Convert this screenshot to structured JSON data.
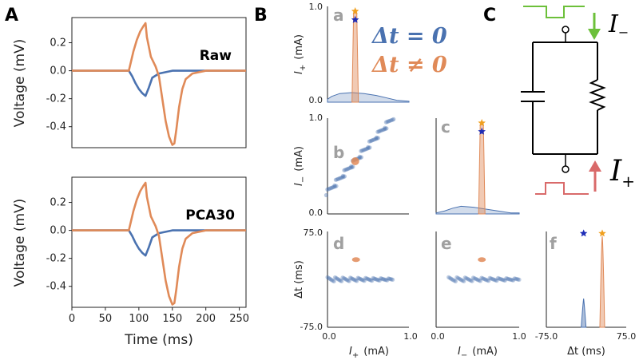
{
  "panels": {
    "A": "A",
    "B": "B",
    "C": "C"
  },
  "colors": {
    "blue": "#4a72b0",
    "orange": "#e08a58",
    "green": "#6cc03a",
    "red": "#d96a6a",
    "star_blue": "#1f2eb8",
    "star_orange": "#f0a020"
  },
  "chart_data": [
    {
      "id": "A-raw",
      "type": "line",
      "title": "Raw",
      "xlabel": "",
      "ylabel": "Voltage (mV)",
      "xlim": [
        0,
        260
      ],
      "ylim": [
        -0.55,
        0.38
      ],
      "yticks": [
        "0.2",
        "0.0",
        "-0.2",
        "-0.4"
      ],
      "ytick_values": [
        0.2,
        0.0,
        -0.2,
        -0.4
      ],
      "series": [
        {
          "name": "Δt = 0",
          "color": "#4a72b0",
          "x": [
            0,
            85,
            90,
            95,
            100,
            105,
            110,
            115,
            120,
            130,
            140,
            150,
            160,
            180,
            260
          ],
          "y": [
            0,
            0,
            -0.04,
            -0.09,
            -0.13,
            -0.16,
            -0.18,
            -0.12,
            -0.05,
            -0.02,
            -0.01,
            0,
            0,
            0,
            0
          ]
        },
        {
          "name": "Δt ≠ 0",
          "color": "#e08a58",
          "x": [
            0,
            85,
            88,
            92,
            97,
            102,
            107,
            110,
            112,
            118,
            125,
            130,
            135,
            140,
            145,
            150,
            153,
            156,
            160,
            165,
            170,
            180,
            190,
            200,
            260
          ],
          "y": [
            0,
            0,
            0.06,
            0.14,
            0.22,
            0.28,
            0.32,
            0.34,
            0.24,
            0.1,
            0.03,
            -0.04,
            -0.2,
            -0.36,
            -0.47,
            -0.53,
            -0.52,
            -0.42,
            -0.26,
            -0.13,
            -0.06,
            -0.02,
            -0.01,
            0,
            0
          ]
        }
      ]
    },
    {
      "id": "A-pca",
      "type": "line",
      "title": "PCA30",
      "xlabel": "Time (ms)",
      "ylabel": "Voltage (mV)",
      "xlim": [
        0,
        260
      ],
      "ylim": [
        -0.55,
        0.38
      ],
      "xticks": [
        "0",
        "50",
        "100",
        "150",
        "200",
        "250"
      ],
      "xtick_values": [
        0,
        50,
        100,
        150,
        200,
        250
      ],
      "yticks": [
        "0.2",
        "0.0",
        "-0.2",
        "-0.4"
      ],
      "ytick_values": [
        0.2,
        0.0,
        -0.2,
        -0.4
      ],
      "series": [
        {
          "name": "Δt = 0",
          "color": "#4a72b0",
          "x": [
            0,
            85,
            90,
            95,
            100,
            105,
            110,
            115,
            120,
            130,
            140,
            150,
            160,
            180,
            260
          ],
          "y": [
            0,
            0,
            -0.04,
            -0.09,
            -0.13,
            -0.16,
            -0.18,
            -0.12,
            -0.05,
            -0.02,
            -0.01,
            0,
            0,
            0,
            0
          ]
        },
        {
          "name": "Δt ≠ 0",
          "color": "#e08a58",
          "x": [
            0,
            85,
            88,
            92,
            97,
            102,
            107,
            110,
            112,
            118,
            125,
            130,
            135,
            140,
            145,
            150,
            153,
            156,
            160,
            165,
            170,
            180,
            190,
            200,
            260
          ],
          "y": [
            0,
            0,
            0.06,
            0.14,
            0.22,
            0.28,
            0.32,
            0.34,
            0.24,
            0.1,
            0.03,
            -0.04,
            -0.2,
            -0.36,
            -0.47,
            -0.53,
            -0.52,
            -0.42,
            -0.26,
            -0.13,
            -0.06,
            -0.02,
            -0.01,
            0,
            0
          ]
        }
      ]
    },
    {
      "id": "B-a",
      "type": "area",
      "label": "a",
      "ylabel": "I+ (mA)",
      "ylabel_main": "I",
      "ylabel_sub": "+",
      "ylabel_unit": "(mA)",
      "ylim": [
        0,
        1.0
      ],
      "yticks": [
        "1.0",
        "0.0"
      ],
      "xlim": [
        0,
        1.0
      ],
      "legend": {
        "eq": "Δt = 0",
        "neq": "Δt ≠ 0"
      },
      "blue_density_x": [
        0,
        0.05,
        0.15,
        0.3,
        0.45,
        0.6,
        0.75,
        0.85,
        1.0
      ],
      "blue_density_y": [
        0.03,
        0.06,
        0.09,
        0.1,
        0.09,
        0.07,
        0.04,
        0.02,
        0.01
      ],
      "orange_peak_x": 0.34,
      "orange_peak_y": 0.93,
      "star_blue_x": 0.34,
      "star_blue_y": 0.86,
      "star_orange_x": 0.34,
      "star_orange_y": 0.95
    },
    {
      "id": "B-b",
      "type": "scatter",
      "label": "b",
      "ylabel": "I− (mA)",
      "ylabel_main": "I",
      "ylabel_sub": "−",
      "ylabel_unit": "(mA)",
      "xlim": [
        0,
        1.0
      ],
      "ylim": [
        0,
        1.0
      ],
      "yticks": [
        "1.0",
        "0.0"
      ],
      "blue_line_x": [
        0.0,
        0.8
      ],
      "blue_line_y": [
        0.22,
        1.0
      ],
      "orange_points": [
        {
          "x": 0.34,
          "y": 0.55
        }
      ]
    },
    {
      "id": "B-c",
      "type": "area",
      "label": "c",
      "xlim": [
        0,
        1.0
      ],
      "ylim": [
        0,
        1.0
      ],
      "blue_density_x": [
        0,
        0.1,
        0.2,
        0.3,
        0.45,
        0.6,
        0.75,
        0.9,
        1.0
      ],
      "blue_density_y": [
        0.01,
        0.03,
        0.06,
        0.08,
        0.07,
        0.05,
        0.03,
        0.01,
        0.01
      ],
      "orange_peak_x": 0.55,
      "orange_peak_y": 0.93,
      "star_blue_x": 0.55,
      "star_blue_y": 0.86,
      "star_orange_x": 0.55,
      "star_orange_y": 0.95
    },
    {
      "id": "B-d",
      "type": "scatter",
      "label": "d",
      "ylabel": "Δt (ms)",
      "xlabel": "I+ (mA)",
      "xlabel_main": "I",
      "xlabel_sub": "+",
      "xlabel_unit": "(mA)",
      "xlim": [
        0,
        1.0
      ],
      "ylim": [
        -75.0,
        75.0
      ],
      "yticks": [
        "75.0",
        "-75.0"
      ],
      "xticks": [
        "0.0",
        "1.0"
      ],
      "blue_band_x": [
        0.0,
        0.8
      ],
      "blue_band_y": 0,
      "orange_points": [
        {
          "x": 0.35,
          "y": 31
        }
      ]
    },
    {
      "id": "B-e",
      "type": "scatter",
      "label": "e",
      "xlabel": "I− (mA)",
      "xlabel_main": "I",
      "xlabel_sub": "−",
      "xlabel_unit": "(mA)",
      "xlim": [
        0,
        1.0
      ],
      "ylim": [
        -75.0,
        75.0
      ],
      "xticks": [
        "0.0",
        "1.0"
      ],
      "blue_band_x": [
        0.15,
        1.0
      ],
      "blue_band_y": 0,
      "orange_points": [
        {
          "x": 0.55,
          "y": 31
        }
      ]
    },
    {
      "id": "B-f",
      "type": "histogram",
      "label": "f",
      "xlabel": "Δt (ms)",
      "xlim": [
        -75.0,
        75.0
      ],
      "xticks": [
        "-75.0",
        "75.0"
      ],
      "blue_peak_x": -5,
      "blue_peak_h": 0.3,
      "orange_peak_x": 30,
      "orange_peak_h": 0.95,
      "star_blue_x": -5,
      "star_orange_x": 30,
      "star_y": 0.98
    }
  ],
  "circuit": {
    "I_minus": "I",
    "I_minus_sub": "−",
    "I_plus": "I",
    "I_plus_sub": "+"
  }
}
